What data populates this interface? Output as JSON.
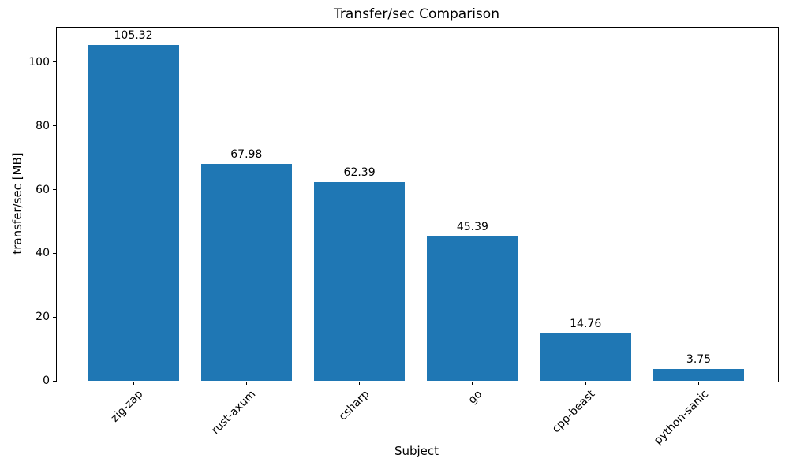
{
  "chart_data": {
    "type": "bar",
    "title": "Transfer/sec Comparison",
    "xlabel": "Subject",
    "ylabel": "transfer/sec [MB]",
    "categories": [
      "zig-zap",
      "rust-axum",
      "csharp",
      "go",
      "cpp-beast",
      "python-sanic"
    ],
    "values": [
      105.32,
      67.98,
      62.39,
      45.39,
      14.76,
      3.75
    ],
    "value_labels": [
      "105.32",
      "67.98",
      "62.39",
      "45.39",
      "14.76",
      "3.75"
    ],
    "yticks": [
      0,
      20,
      40,
      60,
      80,
      100
    ],
    "ylim": [
      0,
      111.1
    ],
    "grid": false,
    "legend": null,
    "bar_color": "#1f77b4",
    "text_color": "#000000",
    "background_color": "#ffffff"
  }
}
